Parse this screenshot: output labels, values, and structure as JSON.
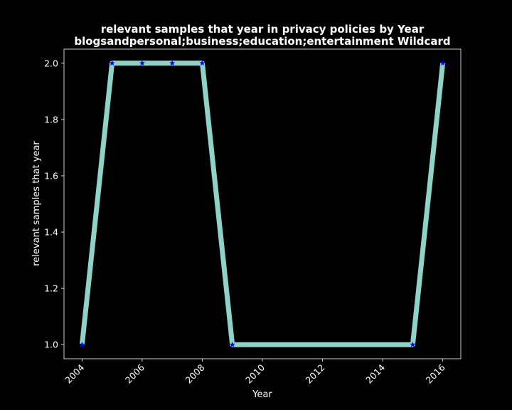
{
  "chart_data": {
    "type": "line",
    "title": "relevant samples that year in privacy policies by Year",
    "subtitle": "blogsandpersonal;business;education;entertainment Wildcard",
    "xlabel": "Year",
    "ylabel": "relevant samples that year",
    "x": [
      2004,
      2005,
      2006,
      2007,
      2008,
      2009,
      2015,
      2016
    ],
    "series": [
      {
        "values": [
          1,
          2,
          2,
          2,
          2,
          1,
          1,
          2
        ]
      }
    ],
    "xlim": [
      2003.4,
      2016.6
    ],
    "ylim": [
      0.95,
      2.05
    ],
    "x_ticks": [
      "2004",
      "2006",
      "2008",
      "2010",
      "2012",
      "2014",
      "2016"
    ],
    "y_ticks": [
      "1.0",
      "1.2",
      "1.4",
      "1.6",
      "1.8",
      "2.0"
    ],
    "x_tick_rotation": 45,
    "grid": false,
    "line_color": "#8dd3c7",
    "marker_color": "#0000ff",
    "marker": "star",
    "background": "#000000",
    "axis_color": "#ffffff"
  }
}
